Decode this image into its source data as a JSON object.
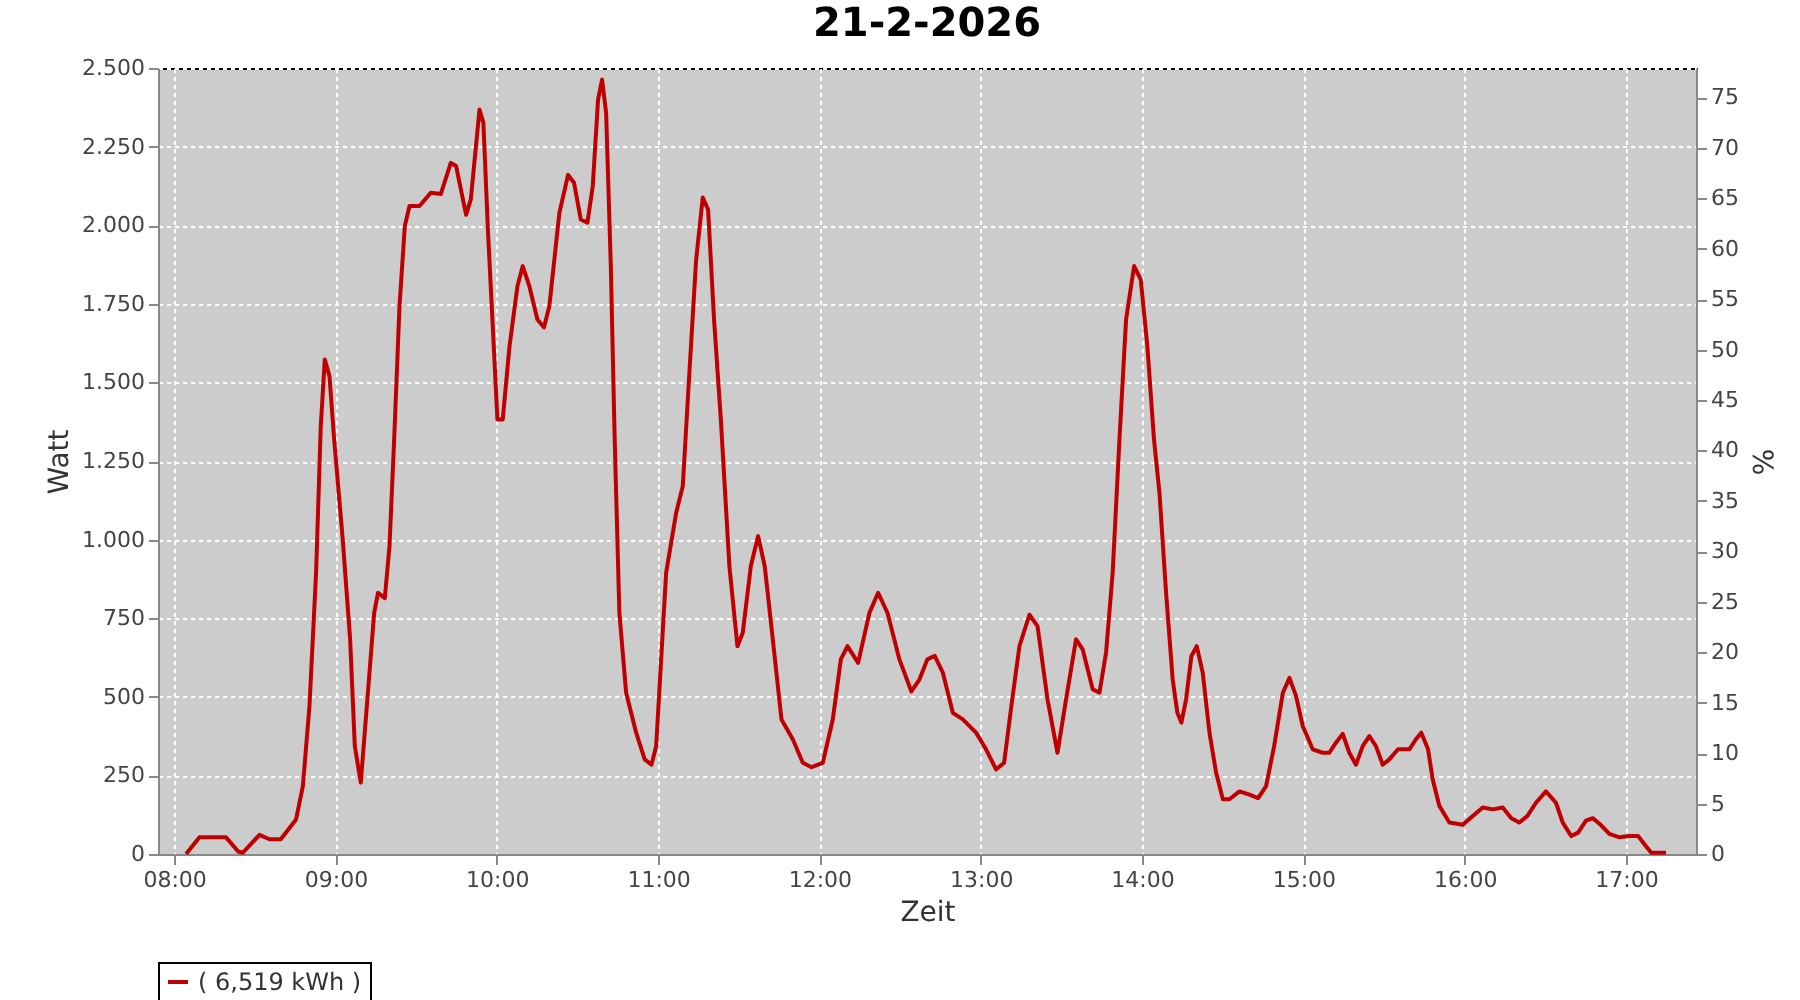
{
  "chart_data": {
    "type": "line",
    "title": "21-2-2026",
    "xlabel": "Zeit",
    "ylabel": "Watt",
    "y2label": "%",
    "xlim": [
      7.9,
      17.434
    ],
    "xticks": [
      {
        "value": 8,
        "label": "08:00"
      },
      {
        "value": 9,
        "label": "09:00"
      },
      {
        "value": 10,
        "label": "10:00"
      },
      {
        "value": 11,
        "label": "11:00"
      },
      {
        "value": 12,
        "label": "12:00"
      },
      {
        "value": 13,
        "label": "13:00"
      },
      {
        "value": 14,
        "label": "14:00"
      },
      {
        "value": 15,
        "label": "15:00"
      },
      {
        "value": 16,
        "label": "16:00"
      },
      {
        "value": 17,
        "label": "17:00"
      }
    ],
    "ylim": [
      0,
      2500
    ],
    "yticks": [
      0,
      {
        "value": 250,
        "label": "250"
      },
      {
        "value": 500,
        "label": "500"
      },
      {
        "value": 750,
        "label": "750"
      },
      {
        "value": 1000,
        "label": "1.000"
      },
      {
        "value": 1250,
        "label": "1.250"
      },
      {
        "value": 1500,
        "label": "1.500"
      },
      {
        "value": 1750,
        "label": "1.750"
      },
      {
        "value": 2000,
        "label": "2.000"
      },
      {
        "value": 2250,
        "label": "2.250"
      },
      {
        "value": 2500,
        "label": "2.500"
      }
    ],
    "y2lim": [
      0,
      77.9
    ],
    "y2ticks": [
      0,
      5,
      10,
      15,
      20,
      25,
      30,
      35,
      40,
      45,
      50,
      55,
      60,
      65,
      70,
      75
    ],
    "grid": true,
    "legend": "bottom",
    "series": [
      {
        "name": "( 6,519 kWh )",
        "color": "#c00000",
        "x": [
          8.074,
          8.157,
          8.322,
          8.397,
          8.426,
          8.529,
          8.591,
          8.661,
          8.756,
          8.798,
          8.839,
          8.88,
          8.909,
          8.934,
          8.963,
          8.992,
          9.045,
          9.091,
          9.12,
          9.157,
          9.211,
          9.24,
          9.264,
          9.306,
          9.335,
          9.364,
          9.397,
          9.43,
          9.459,
          9.521,
          9.591,
          9.653,
          9.715,
          9.748,
          9.81,
          9.839,
          9.893,
          9.917,
          9.946,
          9.975,
          10.004,
          10.037,
          10.079,
          10.128,
          10.161,
          10.202,
          10.252,
          10.293,
          10.326,
          10.388,
          10.442,
          10.479,
          10.521,
          10.562,
          10.595,
          10.628,
          10.653,
          10.678,
          10.707,
          10.731,
          10.76,
          10.802,
          10.864,
          10.917,
          10.959,
          10.988,
          11.05,
          11.112,
          11.153,
          11.194,
          11.236,
          11.277,
          11.31,
          11.347,
          11.389,
          11.442,
          11.492,
          11.525,
          11.575,
          11.62,
          11.661,
          11.711,
          11.765,
          11.835,
          11.897,
          11.951,
          12.021,
          12.083,
          12.133,
          12.174,
          12.24,
          12.31,
          12.364,
          12.422,
          12.496,
          12.57,
          12.62,
          12.669,
          12.715,
          12.765,
          12.827,
          12.889,
          12.971,
          13.033,
          13.095,
          13.145,
          13.19,
          13.24,
          13.302,
          13.352,
          13.414,
          13.476,
          13.529,
          13.591,
          13.632,
          13.694,
          13.736,
          13.777,
          13.818,
          13.86,
          13.901,
          13.951,
          13.992,
          14.033,
          14.074,
          14.108,
          14.149,
          14.19,
          14.219,
          14.244,
          14.273,
          14.306,
          14.339,
          14.376,
          14.418,
          14.459,
          14.501,
          14.542,
          14.604,
          14.666,
          14.72,
          14.769,
          14.819,
          14.873,
          14.914,
          14.955,
          14.996,
          15.058,
          15.12,
          15.161,
          15.202,
          15.244,
          15.285,
          15.326,
          15.368,
          15.409,
          15.45,
          15.492,
          15.533,
          15.587,
          15.657,
          15.698,
          15.731,
          15.773,
          15.802,
          15.843,
          15.905,
          15.988,
          16.05,
          16.112,
          16.174,
          16.236,
          16.289,
          16.339,
          16.389,
          16.442,
          16.504,
          16.566,
          16.608,
          16.661,
          16.703,
          16.752,
          16.794,
          16.843,
          16.897,
          16.959,
          17.021,
          17.075,
          17.124,
          17.157,
          17.248
        ],
        "values": [
          0,
          53,
          53,
          8,
          4,
          61,
          47,
          47,
          110,
          216,
          471,
          895,
          1361,
          1573,
          1520,
          1319,
          1001,
          683,
          343,
          227,
          577,
          767,
          831,
          814,
          979,
          1319,
          1743,
          1997,
          2061,
          2061,
          2103,
          2099,
          2198,
          2188,
          2033,
          2082,
          2368,
          2326,
          1976,
          1679,
          1382,
          1382,
          1615,
          1806,
          1870,
          1806,
          1700,
          1675,
          1743,
          2039,
          2160,
          2135,
          2018,
          2008,
          2124,
          2400,
          2463,
          2357,
          1870,
          1319,
          767,
          513,
          386,
          301,
          284,
          343,
          895,
          1085,
          1170,
          1531,
          1891,
          2088,
          2050,
          1700,
          1382,
          916,
          661,
          704,
          916,
          1011,
          916,
          683,
          428,
          365,
          290,
          276,
          290,
          428,
          619,
          661,
          608,
          767,
          831,
          767,
          619,
          517,
          555,
          619,
          630,
          577,
          449,
          428,
          386,
          333,
          269,
          290,
          471,
          661,
          761,
          725,
          492,
          322,
          492,
          683,
          651,
          524,
          513,
          640,
          895,
          1319,
          1700,
          1870,
          1827,
          1615,
          1319,
          1149,
          831,
          555,
          449,
          418,
          492,
          630,
          661,
          577,
          386,
          259,
          174,
          174,
          199,
          189,
          178,
          216,
          343,
          513,
          560,
          502,
          407,
          333,
          322,
          322,
          354,
          382,
          322,
          284,
          343,
          375,
          343,
          284,
          301,
          333,
          333,
          365,
          386,
          333,
          237,
          153,
          100,
          93,
          121,
          148,
          142,
          148,
          114,
          100,
          121,
          163,
          199,
          163,
          100,
          57,
          68,
          106,
          114,
          93,
          64,
          53,
          57,
          57,
          25,
          4,
          4
        ]
      }
    ]
  }
}
